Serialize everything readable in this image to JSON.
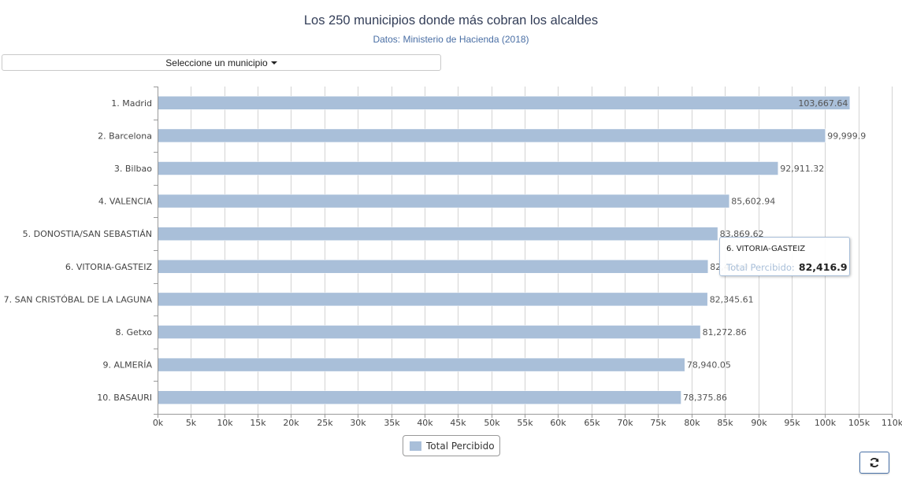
{
  "header": {
    "title": "Los 250 municipios donde más cobran los alcaldes",
    "subtitle": "Datos: Ministerio de Hacienda (2018)"
  },
  "selector": {
    "label": "Seleccione un municipio"
  },
  "chart_data": {
    "type": "bar",
    "orientation": "horizontal",
    "categories": [
      "1. Madrid",
      "2. Barcelona",
      "3. Bilbao",
      "4. VALENCIA",
      "5. DONOSTIA/SAN SEBASTIÁN",
      "6. VITORIA-GASTEIZ",
      "7. SAN CRISTÓBAL DE LA LAGUNA",
      "8. Getxo",
      "9. ALMERÍA",
      "10. BASAURI"
    ],
    "series": [
      {
        "name": "Total Percibido",
        "color": "#a9bfd9",
        "values": [
          103667.64,
          99999.9,
          92911.32,
          85602.94,
          83869.62,
          82416.9,
          82345.61,
          81272.86,
          78940.05,
          78375.86
        ],
        "labels": [
          "103,667.64",
          "99,999.9",
          "92,911.32",
          "85,602.94",
          "83,869.62",
          "82,416.9",
          "82,345.61",
          "81,272.86",
          "78,940.05",
          "78,375.86"
        ]
      }
    ],
    "xlim": [
      0,
      110000
    ],
    "tick_labels": [
      "0k",
      "5k",
      "10k",
      "15k",
      "20k",
      "25k",
      "30k",
      "35k",
      "40k",
      "45k",
      "50k",
      "55k",
      "60k",
      "65k",
      "70k",
      "75k",
      "80k",
      "85k",
      "90k",
      "95k",
      "100k",
      "105k",
      "110k"
    ],
    "grid": true,
    "legend_position": "bottom-center"
  },
  "tooltip": {
    "title": "6. VITORIA-GASTEIZ",
    "series_label": "Total Percibido:",
    "value": "82,416.9"
  },
  "legend": {
    "label": "Total Percibido"
  },
  "toolbar": {
    "refresh_icon": "refresh-icon"
  }
}
